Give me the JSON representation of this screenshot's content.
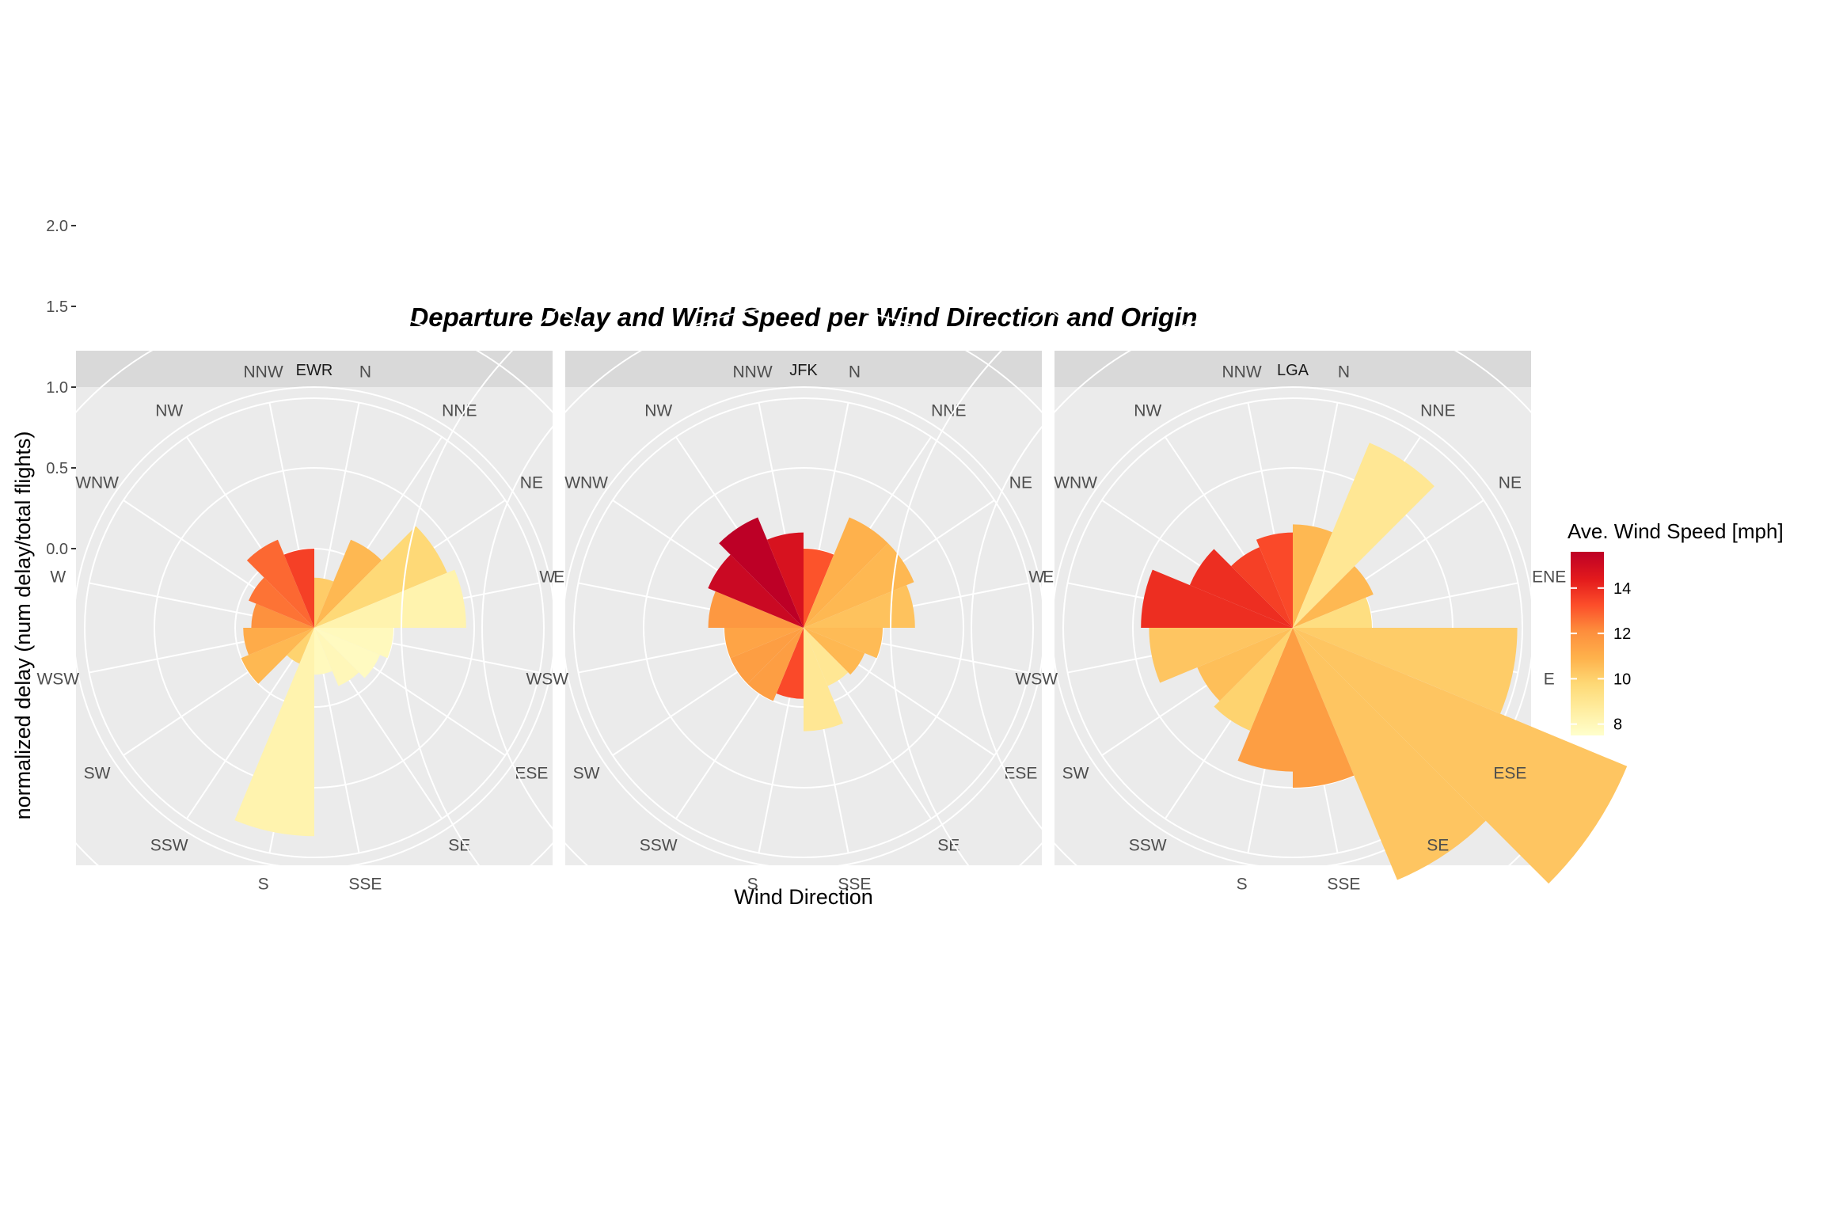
{
  "chart_data": {
    "type": "bar",
    "coord": "polar",
    "title": "Departure Delay and Wind Speed per Wind Direction and Origin",
    "xlabel": "Wind Direction",
    "ylabel": "normalized delay (num delay/total flights)",
    "y_ticks": [
      "0.0",
      "0.5",
      "1.0",
      "1.5",
      "2.0"
    ],
    "y_tick_values": [
      0,
      0.5,
      1,
      1.5,
      2
    ],
    "ylim": [
      -0.5,
      2.0
    ],
    "directions": [
      "N",
      "NNE",
      "NE",
      "ENE",
      "E",
      "ESE",
      "SE",
      "SSE",
      "S",
      "SSW",
      "SW",
      "WSW",
      "W",
      "WNW",
      "NW",
      "NNW"
    ],
    "grid": true,
    "legend": {
      "title": "Ave. Wind Speed [mph]",
      "position": "right",
      "ticks": [
        "8",
        "10",
        "12",
        "14"
      ],
      "tick_values": [
        8,
        10,
        12,
        14
      ],
      "range": [
        7.5,
        15.6
      ],
      "colors": [
        "#ffffcc",
        "#ffeda0",
        "#fed976",
        "#feb24c",
        "#fd8d3c",
        "#fc4e2a",
        "#e31a1c",
        "#bd0026"
      ]
    },
    "panels": [
      {
        "name": "EWR",
        "values": [
          -0.18,
          0.1,
          0.4,
          0.45,
          0.0,
          -0.05,
          -0.1,
          -0.2,
          0.8,
          -0.25,
          0.0,
          -0.05,
          -0.1,
          -0.05,
          0.1,
          0.0
        ],
        "wind_speed": [
          10.2,
          10.8,
          9.8,
          8.3,
          7.9,
          7.8,
          8.0,
          7.9,
          8.3,
          10.0,
          10.8,
          11.2,
          12.0,
          12.6,
          12.8,
          13.6
        ]
      },
      {
        "name": "JFK",
        "values": [
          0.0,
          0.25,
          0.25,
          0.2,
          0.0,
          -0.08,
          -0.1,
          0.15,
          -0.05,
          0.0,
          0.0,
          0.0,
          0.1,
          0.15,
          0.25,
          0.1
        ],
        "wind_speed": [
          13.2,
          11.0,
          10.8,
          10.5,
          10.7,
          10.8,
          9.0,
          9.0,
          13.4,
          11.6,
          11.6,
          11.4,
          11.8,
          15.2,
          15.6,
          14.8
        ]
      },
      {
        "name": "LGA",
        "values": [
          0.15,
          0.75,
          0.05,
          0.0,
          0.9,
          1.75,
          1.2,
          0.5,
          0.4,
          0.2,
          0.15,
          0.4,
          0.45,
          0.2,
          0.05,
          0.1
        ],
        "wind_speed": [
          10.8,
          9.0,
          10.8,
          9.5,
          10.2,
          10.4,
          10.4,
          11.6,
          11.6,
          10.0,
          10.6,
          10.4,
          14.0,
          14.0,
          13.6,
          13.4
        ]
      }
    ]
  }
}
